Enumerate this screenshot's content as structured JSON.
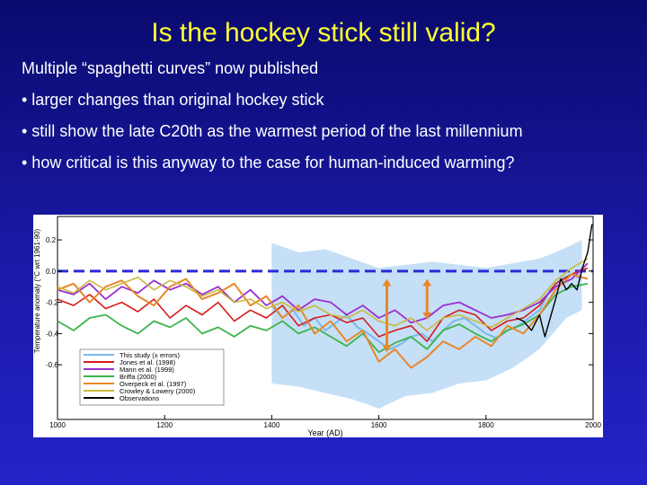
{
  "slide": {
    "title": "Is the hockey stick still valid?",
    "bullets": [
      "Multiple “spaghetti curves”  now published",
      "• larger changes than original hockey stick",
      "• still show the late C20th as the warmest period of the last millennium",
      "• how critical is this anyway to the case for human-induced warming?"
    ]
  },
  "chart_data": {
    "type": "line",
    "title": "",
    "xlabel": "Year (AD)",
    "ylabel": "Temperature anomaly (°C wrt 1961-90)",
    "xlim": [
      1000,
      2000
    ],
    "ylim": [
      -0.95,
      0.35
    ],
    "xticks": [
      1000,
      1200,
      1400,
      1600,
      1800,
      2000
    ],
    "yticks": [
      0.2,
      0.0,
      -0.2,
      -0.4,
      -0.6
    ],
    "xtick_labels": [
      "1000",
      "1200",
      "1400",
      "1600",
      "1800",
      "2000"
    ],
    "ytick_labels": [
      "0.2",
      "0.0",
      "-0.2",
      "-0.4",
      "-0.6"
    ],
    "legend_position": "bottom-left",
    "reference_line": {
      "y": 0.0,
      "color": "#2b2bd6"
    },
    "uncertainty_band": {
      "x": [
        1400,
        1450,
        1500,
        1550,
        1600,
        1650,
        1700,
        1750,
        1800,
        1850,
        1900,
        1950,
        1979
      ],
      "upper": [
        0.18,
        0.12,
        0.14,
        0.08,
        0.02,
        0.04,
        0.06,
        0.04,
        0.02,
        0.05,
        0.08,
        0.15,
        0.2
      ],
      "lower": [
        -0.72,
        -0.74,
        -0.78,
        -0.82,
        -0.88,
        -0.8,
        -0.78,
        -0.72,
        -0.7,
        -0.62,
        -0.5,
        -0.3,
        -0.25
      ]
    },
    "arrows": [
      {
        "x": 1615,
        "y1": -0.05,
        "y2": -0.52,
        "color": "#e8872a"
      },
      {
        "x": 1690,
        "y1": -0.05,
        "y2": -0.31,
        "color": "#e8872a"
      }
    ],
    "series": [
      {
        "name": "This study (± errors)",
        "color": "#7ab8ea",
        "width": 2,
        "x": [
          1400,
          1420,
          1440,
          1460,
          1480,
          1500,
          1520,
          1540,
          1560,
          1580,
          1600,
          1620,
          1640,
          1660,
          1680,
          1700,
          1720,
          1740,
          1760,
          1780,
          1800,
          1820,
          1840,
          1860,
          1880,
          1900,
          1920,
          1940,
          1960,
          1979
        ],
        "y": [
          -0.22,
          -0.3,
          -0.25,
          -0.35,
          -0.3,
          -0.38,
          -0.33,
          -0.28,
          -0.36,
          -0.4,
          -0.45,
          -0.5,
          -0.47,
          -0.42,
          -0.4,
          -0.45,
          -0.38,
          -0.32,
          -0.3,
          -0.35,
          -0.4,
          -0.43,
          -0.38,
          -0.35,
          -0.3,
          -0.25,
          -0.12,
          -0.05,
          -0.02,
          -0.05
        ]
      },
      {
        "name": "Jones et al. (1998)",
        "color": "#d81b1b",
        "width": 1.6,
        "x": [
          1000,
          1030,
          1060,
          1090,
          1120,
          1150,
          1180,
          1210,
          1240,
          1270,
          1300,
          1330,
          1360,
          1390,
          1420,
          1450,
          1480,
          1510,
          1540,
          1570,
          1600,
          1630,
          1660,
          1690,
          1720,
          1750,
          1780,
          1810,
          1840,
          1870,
          1900,
          1930,
          1960,
          1990
        ],
        "y": [
          -0.18,
          -0.22,
          -0.15,
          -0.24,
          -0.2,
          -0.26,
          -0.18,
          -0.3,
          -0.22,
          -0.28,
          -0.2,
          -0.32,
          -0.25,
          -0.3,
          -0.22,
          -0.35,
          -0.3,
          -0.28,
          -0.33,
          -0.3,
          -0.42,
          -0.38,
          -0.35,
          -0.45,
          -0.3,
          -0.25,
          -0.28,
          -0.38,
          -0.32,
          -0.3,
          -0.22,
          -0.08,
          -0.02,
          0.02
        ]
      },
      {
        "name": "Mann et al. (1999)",
        "color": "#9a2fd0",
        "width": 1.8,
        "x": [
          1000,
          1030,
          1060,
          1090,
          1120,
          1150,
          1180,
          1210,
          1240,
          1270,
          1300,
          1330,
          1360,
          1390,
          1420,
          1450,
          1480,
          1510,
          1540,
          1570,
          1600,
          1630,
          1660,
          1690,
          1720,
          1750,
          1780,
          1810,
          1840,
          1870,
          1900,
          1930,
          1960,
          1990
        ],
        "y": [
          -0.12,
          -0.15,
          -0.08,
          -0.18,
          -0.1,
          -0.14,
          -0.06,
          -0.12,
          -0.08,
          -0.15,
          -0.1,
          -0.2,
          -0.12,
          -0.22,
          -0.16,
          -0.25,
          -0.18,
          -0.2,
          -0.28,
          -0.22,
          -0.3,
          -0.25,
          -0.33,
          -0.3,
          -0.22,
          -0.2,
          -0.25,
          -0.3,
          -0.28,
          -0.25,
          -0.2,
          -0.1,
          -0.05,
          0.05
        ]
      },
      {
        "name": "Briffa (2000)",
        "color": "#3cb44b",
        "width": 1.8,
        "x": [
          1000,
          1030,
          1060,
          1090,
          1120,
          1150,
          1180,
          1210,
          1240,
          1270,
          1300,
          1330,
          1360,
          1390,
          1420,
          1450,
          1480,
          1510,
          1540,
          1570,
          1600,
          1630,
          1660,
          1690,
          1720,
          1750,
          1780,
          1810,
          1840,
          1870,
          1900,
          1930,
          1960,
          1990
        ],
        "y": [
          -0.32,
          -0.38,
          -0.3,
          -0.28,
          -0.35,
          -0.4,
          -0.32,
          -0.36,
          -0.3,
          -0.4,
          -0.36,
          -0.42,
          -0.35,
          -0.38,
          -0.32,
          -0.4,
          -0.36,
          -0.42,
          -0.48,
          -0.4,
          -0.52,
          -0.46,
          -0.42,
          -0.5,
          -0.38,
          -0.34,
          -0.4,
          -0.45,
          -0.38,
          -0.34,
          -0.28,
          -0.15,
          -0.1,
          -0.08
        ]
      },
      {
        "name": "Overpeck et al. (1997)",
        "color": "#e8872a",
        "width": 2,
        "x": [
          1000,
          1030,
          1060,
          1090,
          1120,
          1150,
          1180,
          1210,
          1240,
          1270,
          1300,
          1330,
          1360,
          1390,
          1420,
          1450,
          1480,
          1510,
          1540,
          1570,
          1600,
          1630,
          1660,
          1690,
          1720,
          1750,
          1780,
          1810,
          1840,
          1870,
          1900,
          1930,
          1960,
          1990
        ],
        "y": [
          -0.12,
          -0.08,
          -0.2,
          -0.1,
          -0.06,
          -0.16,
          -0.22,
          -0.1,
          -0.05,
          -0.18,
          -0.14,
          -0.08,
          -0.22,
          -0.16,
          -0.3,
          -0.22,
          -0.4,
          -0.32,
          -0.45,
          -0.38,
          -0.58,
          -0.5,
          -0.62,
          -0.55,
          -0.45,
          -0.5,
          -0.42,
          -0.48,
          -0.35,
          -0.4,
          -0.28,
          -0.12,
          -0.02,
          -0.05
        ]
      },
      {
        "name": "Crowley & Lowery (2000)",
        "color": "#c9b93c",
        "width": 1.6,
        "x": [
          1000,
          1030,
          1060,
          1090,
          1120,
          1150,
          1180,
          1210,
          1240,
          1270,
          1300,
          1330,
          1360,
          1390,
          1420,
          1450,
          1480,
          1510,
          1540,
          1570,
          1600,
          1630,
          1660,
          1690,
          1720,
          1750,
          1780,
          1810,
          1840,
          1870,
          1900,
          1930,
          1960,
          1990
        ],
        "y": [
          -0.1,
          -0.14,
          -0.06,
          -0.12,
          -0.08,
          -0.04,
          -0.12,
          -0.06,
          -0.1,
          -0.16,
          -0.12,
          -0.2,
          -0.18,
          -0.24,
          -0.2,
          -0.26,
          -0.22,
          -0.28,
          -0.3,
          -0.25,
          -0.32,
          -0.35,
          -0.3,
          -0.38,
          -0.3,
          -0.28,
          -0.32,
          -0.36,
          -0.3,
          -0.24,
          -0.18,
          -0.06,
          0.02,
          0.08
        ]
      },
      {
        "name": "Observations",
        "color": "#000000",
        "width": 1.4,
        "x": [
          1856,
          1870,
          1885,
          1900,
          1910,
          1920,
          1930,
          1940,
          1950,
          1960,
          1970,
          1980,
          1990,
          1998
        ],
        "y": [
          -0.3,
          -0.32,
          -0.38,
          -0.28,
          -0.42,
          -0.3,
          -0.18,
          -0.05,
          -0.12,
          -0.08,
          -0.12,
          0.02,
          0.12,
          0.3
        ]
      }
    ]
  }
}
